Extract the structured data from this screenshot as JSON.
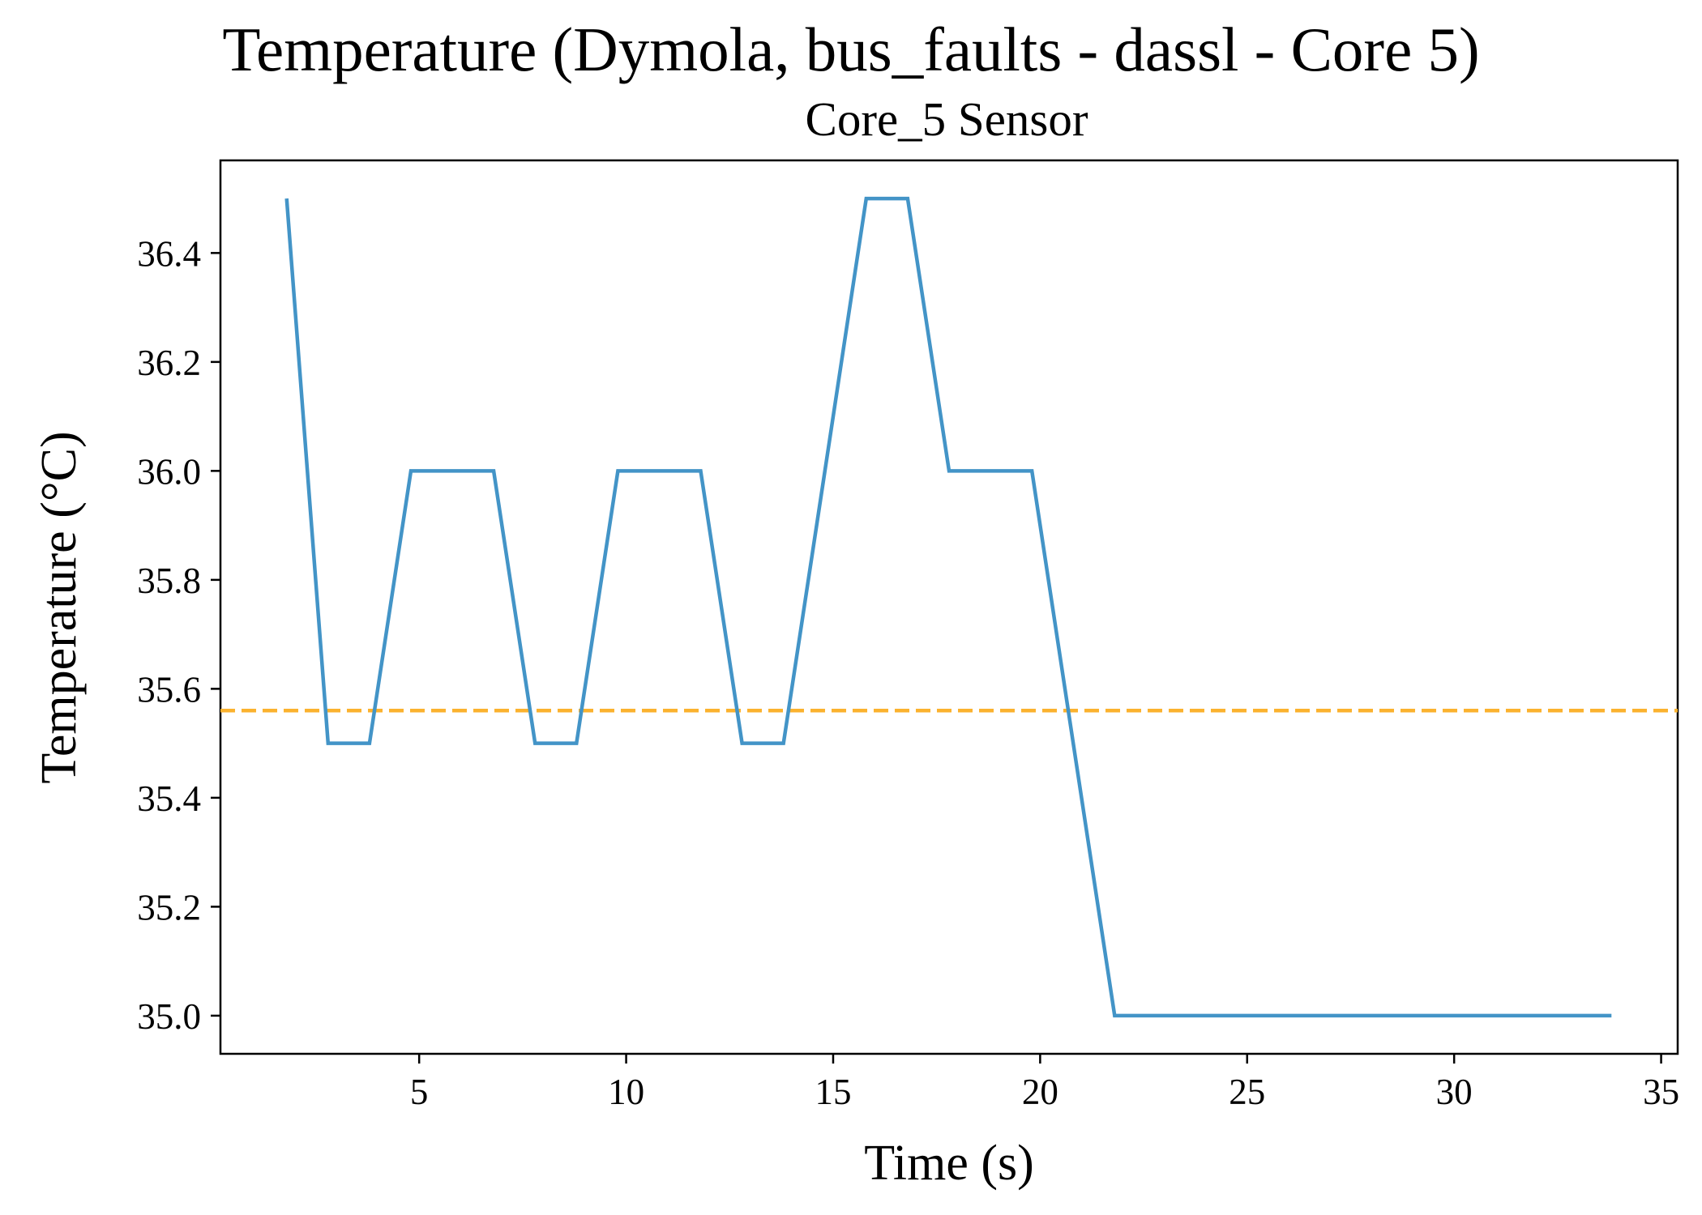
{
  "chart_data": {
    "type": "line",
    "title": "Temperature (Dymola, bus_faults - dassl - Core 5)",
    "subtitle": "Core_5 Sensor",
    "xlabel": "Time (s)",
    "ylabel": "Temperature (°C)",
    "xlim": [
      0.2,
      35.4
    ],
    "ylim": [
      34.93,
      36.57
    ],
    "xticks": [
      5,
      10,
      15,
      20,
      25,
      30,
      35
    ],
    "yticks": [
      35.0,
      35.2,
      35.4,
      35.6,
      35.8,
      36.0,
      36.2,
      36.4
    ],
    "xtick_labels": [
      "5",
      "10",
      "15",
      "20",
      "25",
      "30",
      "35"
    ],
    "ytick_labels": [
      "35.0",
      "35.2",
      "35.4",
      "35.6",
      "35.8",
      "36.0",
      "36.2",
      "36.4"
    ],
    "grid": false,
    "legend": "none",
    "series": [
      {
        "color": "#4394c7",
        "style": "solid",
        "x": [
          1.8,
          2.8,
          3.8,
          4.8,
          5.8,
          6.8,
          7.8,
          8.8,
          9.8,
          10.8,
          11.8,
          12.8,
          13.8,
          14.8,
          15.8,
          16.8,
          17.8,
          18.8,
          19.8,
          20.8,
          21.8,
          22.8,
          23.8,
          24.8,
          25.8,
          26.8,
          27.8,
          28.8,
          29.8,
          30.8,
          31.8,
          32.8,
          33.8
        ],
        "values": [
          36.5,
          35.5,
          35.5,
          36.0,
          36.0,
          36.0,
          35.5,
          35.5,
          36.0,
          36.0,
          36.0,
          35.5,
          35.5,
          36.0,
          36.5,
          36.5,
          36.0,
          36.0,
          36.0,
          35.5,
          35.0,
          35.0,
          35.0,
          35.0,
          35.0,
          35.0,
          35.0,
          35.0,
          35.0,
          35.0,
          35.0,
          35.0,
          35.0
        ]
      }
    ],
    "reference_lines": [
      {
        "y": 35.56,
        "color": "#fbb22e",
        "style": "dashed"
      }
    ]
  }
}
